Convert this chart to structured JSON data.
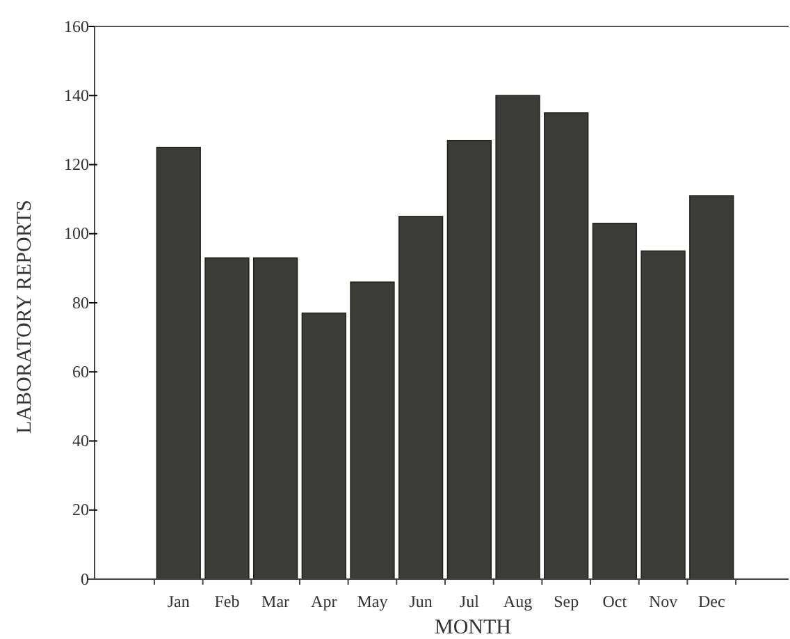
{
  "chart_data": {
    "type": "bar",
    "xlabel": "MONTH",
    "ylabel": "LABORATORY REPORTS",
    "categories": [
      "Jan",
      "Feb",
      "Mar",
      "Apr",
      "May",
      "Jun",
      "Jul",
      "Aug",
      "Sep",
      "Oct",
      "Nov",
      "Dec"
    ],
    "values": [
      125,
      93,
      93,
      77,
      86,
      105,
      127,
      140,
      135,
      103,
      95,
      111
    ],
    "color": "#3b3b37",
    "ylim": [
      0,
      160
    ],
    "yticks": [
      0,
      20,
      40,
      60,
      80,
      100,
      120,
      140,
      160
    ],
    "grid": false
  }
}
